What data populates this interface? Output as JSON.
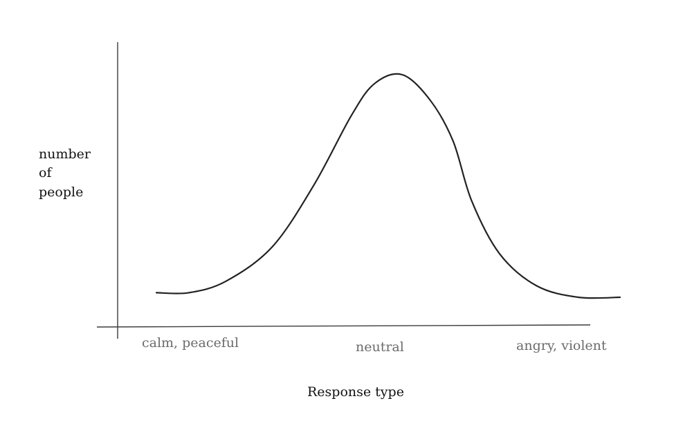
{
  "chart_data": {
    "type": "line",
    "title": "",
    "xlabel": "Response type",
    "ylabel_lines": [
      "number",
      "of",
      "people"
    ],
    "categories": [
      "calm, peaceful",
      "neutral",
      "angry, violent"
    ],
    "series": [
      {
        "values": [
          [
            0.0,
            0.02
          ],
          [
            0.07,
            0.02
          ],
          [
            0.15,
            0.07
          ],
          [
            0.25,
            0.22
          ],
          [
            0.34,
            0.49
          ],
          [
            0.42,
            0.79
          ],
          [
            0.47,
            0.93
          ],
          [
            0.53,
            0.97
          ],
          [
            0.59,
            0.86
          ],
          [
            0.64,
            0.68
          ],
          [
            0.68,
            0.42
          ],
          [
            0.74,
            0.19
          ],
          [
            0.82,
            0.05
          ],
          [
            0.91,
            0.0
          ],
          [
            1.0,
            0.0
          ]
        ]
      }
    ],
    "xlim": [
      0,
      1
    ],
    "ylim": [
      0,
      1
    ],
    "grid": false,
    "legend": "none",
    "colors": {
      "axis": "#3a3a3a",
      "curve": "#222222",
      "tick_text": "#6b6b6b",
      "label_text": "#111111"
    }
  }
}
